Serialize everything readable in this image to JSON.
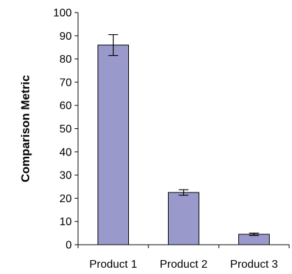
{
  "chart_data": {
    "type": "bar",
    "title": "",
    "xlabel": "",
    "ylabel": "Comparison Metric",
    "ylim": [
      0,
      100
    ],
    "yticks": [
      0,
      10,
      20,
      30,
      40,
      50,
      60,
      70,
      80,
      90,
      100
    ],
    "grid": false,
    "categories": [
      "Product 1",
      "Product 2",
      "Product 3"
    ],
    "values": [
      86,
      22.5,
      4.5
    ],
    "error_bars": [
      4.5,
      1.2,
      0.5
    ],
    "bar_color": "#9999cc",
    "bar_edge_color": "#000000"
  }
}
